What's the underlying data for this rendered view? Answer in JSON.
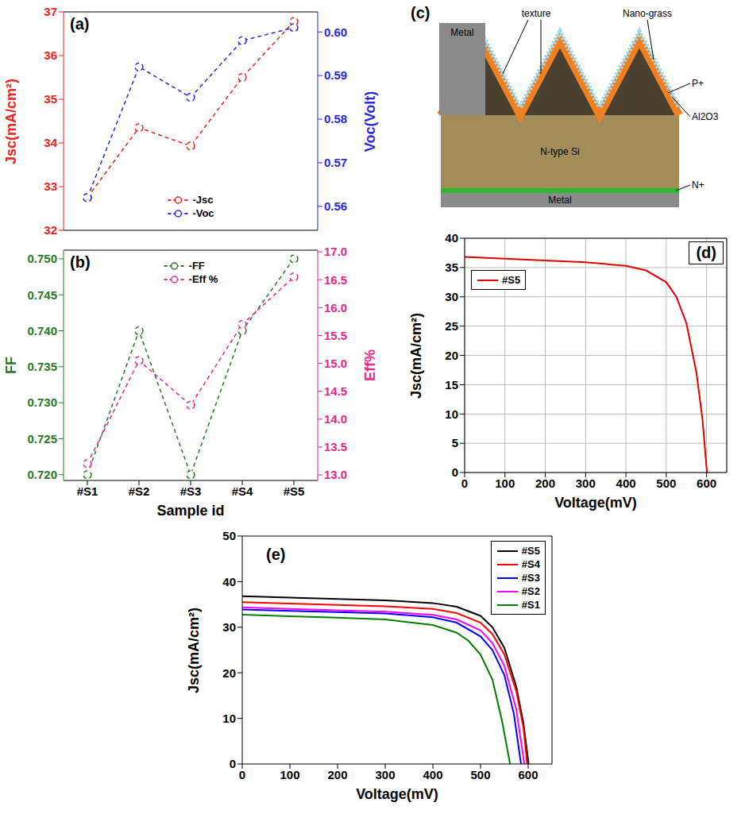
{
  "chart_data": [
    {
      "panel": "(a)",
      "type": "line",
      "categories": [
        "#S1",
        "#S2",
        "#S3",
        "#S4",
        "#S5"
      ],
      "tick_labels": "y",
      "marker": "o",
      "line_style": "dashed",
      "legend": "lower center",
      "ylabel": "Jsc(mA/cm²)",
      "y2label": "Voc(Volt)",
      "ylim": [
        32,
        37
      ],
      "yticks": [
        32,
        33,
        34,
        35,
        36,
        37
      ],
      "y2lim": [
        0.5545,
        0.6046
      ],
      "y2ticks": [
        0.56,
        0.57,
        0.58,
        0.59,
        {
          "value": 0.6,
          "label": "0.60"
        }
      ],
      "series": [
        {
          "name": "-Jsc",
          "color": "#e8251f",
          "values": [
            32.75,
            34.35,
            33.93,
            35.5,
            36.78
          ]
        },
        {
          "name": "-Voc",
          "color": "#2a2ae0",
          "axis": "y2",
          "values": [
            0.562,
            0.592,
            0.585,
            0.598,
            0.601
          ]
        }
      ]
    },
    {
      "panel": "(b)",
      "type": "line",
      "categories": [
        "#S1",
        "#S2",
        "#S3",
        "#S4",
        "#S5"
      ],
      "marker": "o",
      "line_style": "dashed",
      "legend": "upper center",
      "xlabel": "Sample id",
      "ylabel": "FF",
      "y2label": "Eff%",
      "ylim": [
        0.7192,
        0.7512
      ],
      "yticks": [
        {
          "value": 0.72,
          "label": "0.720"
        },
        0.725,
        {
          "value": 0.73,
          "label": "0.730"
        },
        0.735,
        {
          "value": 0.74,
          "label": "0.740"
        },
        0.745,
        {
          "value": 0.75,
          "label": "0.750"
        }
      ],
      "y2lim": [
        12.9,
        17.03
      ],
      "y2ticks": [
        {
          "value": 13,
          "label": "13.0"
        },
        13.5,
        {
          "value": 14,
          "label": "14.0"
        },
        14.5,
        {
          "value": 15,
          "label": "15.0"
        },
        15.5,
        {
          "value": 16,
          "label": "16.0"
        },
        16.5,
        {
          "value": 17,
          "label": "17.0"
        }
      ],
      "series": [
        {
          "name": "-FF",
          "color": "#2a7a2a",
          "values": [
            0.72,
            0.74,
            0.72,
            0.74,
            0.75
          ]
        },
        {
          "name": "-Eff %",
          "color": "#e8288a",
          "axis": "y2",
          "values": [
            13.2,
            15.05,
            14.25,
            15.7,
            16.55
          ]
        }
      ]
    },
    {
      "panel": "(d)",
      "type": "line",
      "line_style": "solid",
      "legend": "upper left",
      "grid": true,
      "xlabel": "Voltage(mV)",
      "ylabel": "Jsc(mA/cm²)",
      "xlim": [
        0,
        650
      ],
      "xticks": [
        0,
        100,
        200,
        300,
        400,
        500,
        600
      ],
      "ylim": [
        0,
        40
      ],
      "yticks": [
        0,
        5,
        10,
        15,
        20,
        25,
        30,
        35,
        40
      ],
      "series": [
        {
          "name": "#S5",
          "color": "#e00000",
          "x": [
            0,
            100,
            200,
            300,
            400,
            450,
            500,
            525,
            550,
            575,
            590,
            601
          ],
          "values": [
            36.8,
            36.5,
            36.2,
            35.9,
            35.3,
            34.5,
            32.5,
            30,
            25.5,
            17,
            9,
            0
          ]
        }
      ]
    },
    {
      "panel": "(e)",
      "type": "line",
      "line_style": "solid",
      "legend": "upper right",
      "xlabel": "Voltage(mV)",
      "ylabel": "Jsc(mA/cm²)",
      "xlim": [
        0,
        650
      ],
      "xticks": [
        0,
        100,
        200,
        300,
        400,
        500,
        600
      ],
      "ylim": [
        0,
        50
      ],
      "yticks": [
        0,
        10,
        20,
        30,
        40,
        50
      ],
      "series": [
        {
          "name": "#S5",
          "color": "#000000",
          "x": [
            0,
            100,
            200,
            300,
            400,
            450,
            500,
            525,
            550,
            575,
            590,
            601
          ],
          "values": [
            36.8,
            36.5,
            36.2,
            35.9,
            35.3,
            34.5,
            32.5,
            30,
            25.5,
            17,
            9,
            0
          ]
        },
        {
          "name": "#S4",
          "color": "#ff0000",
          "x": [
            0,
            100,
            200,
            300,
            400,
            450,
            500,
            525,
            550,
            575,
            590,
            598
          ],
          "values": [
            35.5,
            35.2,
            34.9,
            34.6,
            34,
            33.1,
            31,
            28.5,
            24,
            16,
            8,
            0
          ]
        },
        {
          "name": "#S3",
          "color": "#0000ff",
          "x": [
            0,
            100,
            200,
            300,
            400,
            450,
            500,
            525,
            550,
            570,
            585
          ],
          "values": [
            33.9,
            33.6,
            33.3,
            33,
            32.2,
            31,
            28,
            25,
            19.5,
            11,
            0
          ]
        },
        {
          "name": "#S2",
          "color": "#ff00ff",
          "x": [
            0,
            100,
            200,
            300,
            400,
            450,
            500,
            525,
            550,
            575,
            592
          ],
          "values": [
            34.35,
            34,
            33.7,
            33.4,
            32.7,
            31.7,
            29.3,
            26.5,
            21.5,
            12,
            0
          ]
        },
        {
          "name": "#S1",
          "color": "#008000",
          "x": [
            0,
            100,
            200,
            300,
            400,
            450,
            475,
            500,
            525,
            545,
            562
          ],
          "values": [
            32.75,
            32.4,
            32.1,
            31.7,
            30.5,
            28.8,
            27,
            24,
            18.5,
            9.5,
            0
          ]
        }
      ]
    }
  ],
  "diagram": {
    "panel": "(c)",
    "labels": {
      "top_metal": "Metal",
      "texture": "texture",
      "nano_grass": "Nano-grass",
      "p_plus": "P+",
      "al2o3": "Al2O3",
      "substrate": "N-type Si",
      "n_plus": "N+",
      "bottom_metal": "Metal"
    }
  }
}
